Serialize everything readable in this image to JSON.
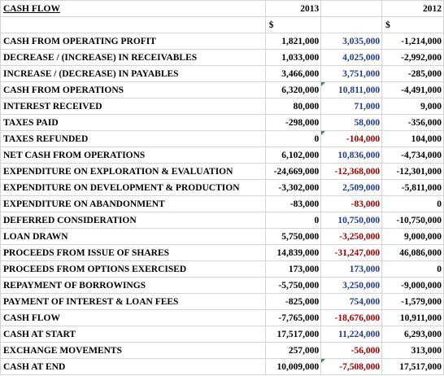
{
  "header": {
    "title": "CASH FLOW",
    "year_current": "2013",
    "year_prior": "2012",
    "currency_symbol": "$"
  },
  "rows": [
    {
      "label": "CASH FROM OPERATING PROFIT",
      "y2013": "1,821,000",
      "change": "3,035,000",
      "y2012": "-1,214,000"
    },
    {
      "label": "DECREASE / (INCREASE) IN RECEIVABLES",
      "y2013": "1,033,000",
      "change": "4,025,000",
      "y2012": "-2,992,000"
    },
    {
      "label": "INCREASE / (DECREASE) IN PAYABLES",
      "y2013": "3,466,000",
      "change": "3,751,000",
      "y2012": "-285,000"
    },
    {
      "label": "CASH FROM OPERATIONS",
      "y2013": "6,320,000",
      "change": "10,811,000",
      "y2012": "-4,491,000"
    },
    {
      "label": "INTEREST RECEIVED",
      "y2013": "80,000",
      "change": "71,000",
      "y2012": "9,000"
    },
    {
      "label": "TAXES PAID",
      "y2013": "-298,000",
      "change": "58,000",
      "y2012": "-356,000"
    },
    {
      "label": "TAXES REFUNDED",
      "y2013": "0",
      "change": "-104,000",
      "y2012": "104,000"
    },
    {
      "label": "NET CASH FROM OPERATIONS",
      "y2013": "6,102,000",
      "change": "10,836,000",
      "y2012": "-4,734,000"
    },
    {
      "label": "EXPENDITURE ON EXPLORATION & EVALUATION",
      "y2013": "-24,669,000",
      "change": "-12,368,000",
      "y2012": "-12,301,000"
    },
    {
      "label": "EXPENDITURE ON DEVELOPMENT & PRODUCTION",
      "y2013": "-3,302,000",
      "change": "2,509,000",
      "y2012": "-5,811,000"
    },
    {
      "label": "EXPENDITURE ON ABANDONMENT",
      "y2013": "-83,000",
      "change": "-83,000",
      "y2012": "0"
    },
    {
      "label": "DEFERRED CONSIDERATION",
      "y2013": "0",
      "change": "10,750,000",
      "y2012": "-10,750,000"
    },
    {
      "label": "LOAN DRAWN",
      "y2013": "5,750,000",
      "change": "-3,250,000",
      "y2012": "9,000,000"
    },
    {
      "label": "PROCEEDS FROM ISSUE OF SHARES",
      "y2013": "14,839,000",
      "change": "-31,247,000",
      "y2012": "46,086,000"
    },
    {
      "label": "PROCEEDS FROM OPTIONS EXERCISED",
      "y2013": "173,000",
      "change": "173,000",
      "y2012": "0"
    },
    {
      "label": "REPAYMENT OF BORROWINGS",
      "y2013": "-5,750,000",
      "change": "3,250,000",
      "y2012": "-9,000,000"
    },
    {
      "label": "PAYMENT OF INTEREST & LOAN FEES",
      "y2013": "-825,000",
      "change": "754,000",
      "y2012": "-1,579,000"
    },
    {
      "label": "CASH FLOW",
      "y2013": "-7,765,000",
      "change": "-18,676,000",
      "y2012": "10,911,000"
    },
    {
      "label": "CASH AT START",
      "y2013": "17,517,000",
      "change": "11,224,000",
      "y2012": "6,293,000"
    },
    {
      "label": "EXCHANGE MOVEMENTS",
      "y2013": "257,000",
      "change": "-56,000",
      "y2012": "313,000"
    },
    {
      "label": "CASH AT END",
      "y2013": "10,009,000",
      "change": "-7,508,000",
      "y2012": "17,517,000"
    }
  ],
  "colors": {
    "positive_change": "#1f3b8f",
    "negative_change": "#a00000",
    "comment_marker": "#2e9a2e",
    "gridline": "#d4d4d4"
  }
}
